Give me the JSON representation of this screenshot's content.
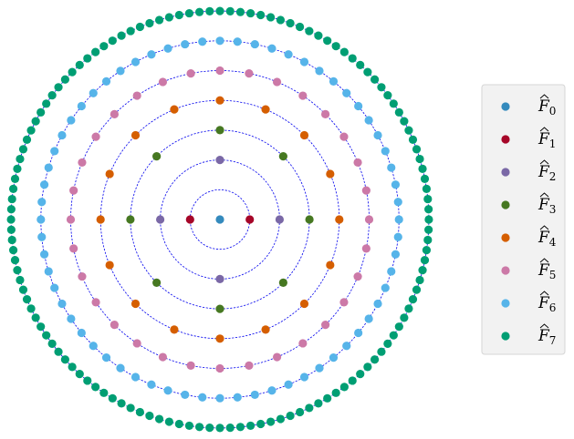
{
  "chart_data": {
    "type": "scatter",
    "title": "",
    "xlabel": "",
    "ylabel": "",
    "axes_visible": false,
    "grid": false,
    "legend_position": "right",
    "ring_style": "dashed-blue",
    "ring_color": "#0000ee",
    "rings": [
      {
        "ring": 1,
        "radius": 1,
        "points": 2,
        "series": "F1"
      },
      {
        "ring": 2,
        "radius": 2,
        "points": 4,
        "series": "F2"
      },
      {
        "ring": 3,
        "radius": 3,
        "points": 8,
        "series": "F3"
      },
      {
        "ring": 4,
        "radius": 4,
        "points": 16,
        "series": "F4"
      },
      {
        "ring": 5,
        "radius": 5,
        "points": 32,
        "series": "F5"
      },
      {
        "ring": 6,
        "radius": 6,
        "points": 64,
        "series": "F6"
      },
      {
        "ring": 7,
        "radius": 7,
        "points": 128,
        "series": "F7"
      }
    ],
    "series": [
      {
        "name": "F̂0",
        "symbol": "F",
        "subscript": "0",
        "color": "#348abd",
        "radius": 0,
        "points": 1
      },
      {
        "name": "F̂1",
        "symbol": "F",
        "subscript": "1",
        "color": "#a60628",
        "radius": 1,
        "points": 2
      },
      {
        "name": "F̂2",
        "symbol": "F",
        "subscript": "2",
        "color": "#7a68a6",
        "radius": 2,
        "points": 4
      },
      {
        "name": "F̂3",
        "symbol": "F",
        "subscript": "3",
        "color": "#467821",
        "radius": 3,
        "points": 8
      },
      {
        "name": "F̂4",
        "symbol": "F",
        "subscript": "4",
        "color": "#d55e00",
        "radius": 4,
        "points": 16
      },
      {
        "name": "F̂5",
        "symbol": "F",
        "subscript": "5",
        "color": "#cc79a7",
        "radius": 5,
        "points": 32
      },
      {
        "name": "F̂6",
        "symbol": "F",
        "subscript": "6",
        "color": "#56b4e9",
        "radius": 6,
        "points": 64
      },
      {
        "name": "F̂7",
        "symbol": "F",
        "subscript": "7",
        "color": "#009e73",
        "radius": 7,
        "points": 128
      }
    ]
  }
}
